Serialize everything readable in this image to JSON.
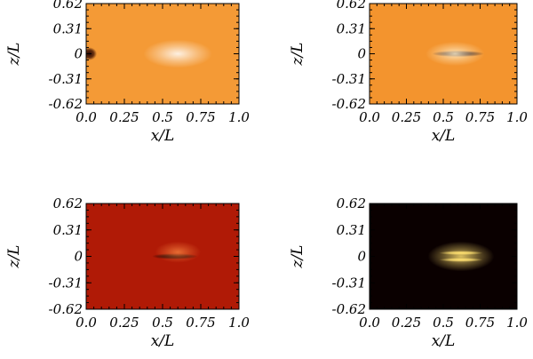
{
  "chart_data": [
    {
      "type": "heatmap",
      "xlabel": "x/L",
      "ylabel": "z/L",
      "xticks": [
        "0.0",
        "0.25",
        "0.5",
        "0.75",
        "1.0"
      ],
      "yticks": [
        "0.62",
        "0.31",
        "0",
        "-0.31",
        "-0.62"
      ],
      "xlim": [
        0.0,
        1.0
      ],
      "ylim": [
        -0.62,
        0.62
      ],
      "colormap": {
        "background": "#f49a36",
        "dark": "#2a0400",
        "light": "#ffffff"
      },
      "features": [
        {
          "kind": "dark-blob",
          "x": 0.02,
          "z": 0.0,
          "width": 0.05,
          "height": 0.08
        },
        {
          "kind": "bright-wedge",
          "x": 0.6,
          "z": 0.0,
          "length": 0.45,
          "spread": 0.35
        }
      ]
    },
    {
      "type": "heatmap",
      "xlabel": "x/L",
      "ylabel": "z/L",
      "xticks": [
        "0.0",
        "0.25",
        "0.5",
        "0.75",
        "1.0"
      ],
      "yticks": [
        "0.62",
        "0.31",
        "0",
        "-0.31",
        "-0.62"
      ],
      "xlim": [
        0.0,
        1.0
      ],
      "ylim": [
        -0.62,
        0.62
      ],
      "colormap": {
        "background": "#f3942e",
        "dark": "#1a0000",
        "light": "#fff2d0"
      },
      "features": [
        {
          "kind": "dark-core",
          "x": 0.6,
          "z": 0.0,
          "length": 0.35,
          "spread": 0.08
        },
        {
          "kind": "light-lobes",
          "x": 0.58,
          "z": 0.0,
          "length": 0.4,
          "spread": 0.3
        }
      ]
    },
    {
      "type": "heatmap",
      "xlabel": "x/L",
      "ylabel": "z/L",
      "xticks": [
        "0.0",
        "0.25",
        "0.5",
        "0.75",
        "1.0"
      ],
      "yticks": [
        "0.62",
        "0.31",
        "0",
        "-0.31",
        "-0.62"
      ],
      "xlim": [
        0.0,
        1.0
      ],
      "ylim": [
        -0.62,
        0.62
      ],
      "colormap": {
        "background": "#b01a06",
        "dark": "#160000",
        "light": "#f07a3a"
      },
      "features": [
        {
          "kind": "dark-core",
          "x": 0.58,
          "z": 0.0,
          "length": 0.3,
          "spread": 0.07
        },
        {
          "kind": "light-lobes",
          "x": 0.6,
          "z": 0.05,
          "length": 0.3,
          "spread": 0.25
        }
      ]
    },
    {
      "type": "heatmap",
      "xlabel": "x/L",
      "ylabel": "z/L",
      "xticks": [
        "0.0",
        "0.25",
        "0.5",
        "0.75",
        "1.0"
      ],
      "yticks": [
        "0.62",
        "0.31",
        "0",
        "-0.31",
        "-0.62"
      ],
      "xlim": [
        0.0,
        1.0
      ],
      "ylim": [
        -0.62,
        0.62
      ],
      "colormap": {
        "background": "#0a0000",
        "dark": "#000000",
        "light": "#ffe070"
      },
      "features": [
        {
          "kind": "bright-core",
          "x": 0.62,
          "z": 0.04,
          "length": 0.3,
          "spread": 0.05
        },
        {
          "kind": "bright-core",
          "x": 0.62,
          "z": -0.04,
          "length": 0.3,
          "spread": 0.05
        },
        {
          "kind": "glow",
          "x": 0.62,
          "z": 0.0,
          "length": 0.45,
          "spread": 0.35
        }
      ]
    }
  ]
}
